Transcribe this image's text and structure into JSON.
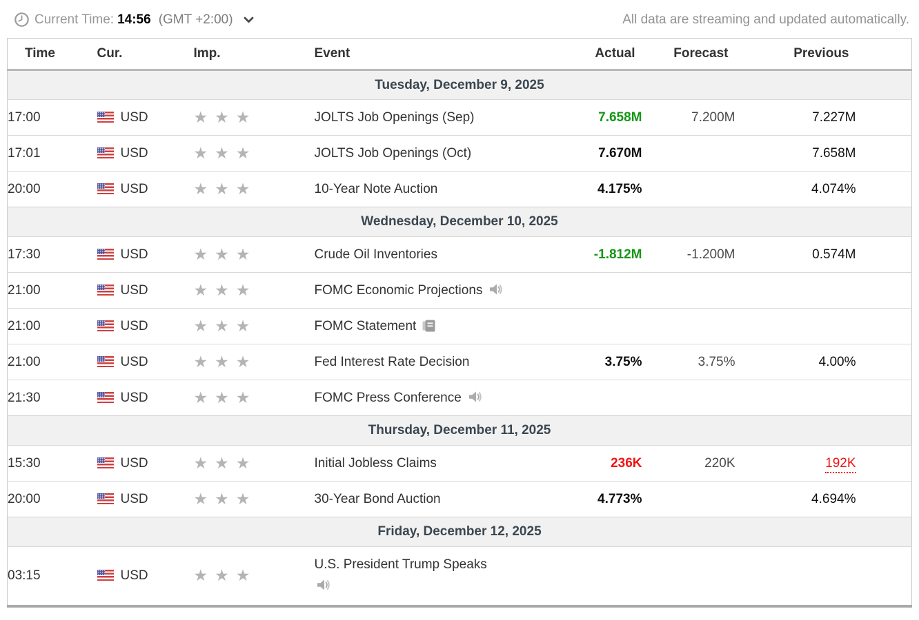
{
  "topbar": {
    "current_time_label": "Current Time:",
    "current_time_value": "14:56",
    "timezone": "(GMT +2:00)",
    "streaming_note": "All data are streaming and updated automatically."
  },
  "colors": {
    "green": "#149614",
    "red": "#f01414",
    "star_gray": "#b4b4b4",
    "day_header_text": "#3b4650"
  },
  "table": {
    "columns": [
      "Time",
      "Cur.",
      "Imp.",
      "Event",
      "Actual",
      "Forecast",
      "Previous"
    ],
    "days": [
      {
        "date": "Tuesday, December 9, 2025",
        "rows": [
          {
            "time": "17:00",
            "currency": "USD",
            "flag": "us-flag",
            "importance": 3,
            "event": "JOLTS Job Openings (Sep)",
            "actual": "7.658M",
            "actual_color": "green",
            "forecast": "7.200M",
            "previous": "7.227M"
          },
          {
            "time": "17:01",
            "currency": "USD",
            "flag": "us-flag",
            "importance": 3,
            "event": "JOLTS Job Openings (Oct)",
            "actual": "7.670M",
            "forecast": "",
            "previous": "7.658M"
          },
          {
            "time": "20:00",
            "currency": "USD",
            "flag": "us-flag",
            "importance": 3,
            "event": "10-Year Note Auction",
            "actual": "4.175%",
            "forecast": "",
            "previous": "4.074%"
          }
        ]
      },
      {
        "date": "Wednesday, December 10, 2025",
        "rows": [
          {
            "time": "17:30",
            "currency": "USD",
            "flag": "us-flag",
            "importance": 3,
            "event": "Crude Oil Inventories",
            "actual": "-1.812M",
            "actual_color": "green",
            "forecast": "-1.200M",
            "previous": "0.574M"
          },
          {
            "time": "21:00",
            "currency": "USD",
            "flag": "us-flag",
            "importance": 3,
            "event": "FOMC Economic Projections",
            "event_icon": "speaker",
            "actual": "",
            "forecast": "",
            "previous": ""
          },
          {
            "time": "21:00",
            "currency": "USD",
            "flag": "us-flag",
            "importance": 3,
            "event": "FOMC Statement",
            "event_icon": "report",
            "actual": "",
            "forecast": "",
            "previous": ""
          },
          {
            "time": "21:00",
            "currency": "USD",
            "flag": "us-flag",
            "importance": 3,
            "event": "Fed Interest Rate Decision",
            "actual": "3.75%",
            "forecast": "3.75%",
            "previous": "4.00%"
          },
          {
            "time": "21:30",
            "currency": "USD",
            "flag": "us-flag",
            "importance": 3,
            "event": "FOMC Press Conference",
            "event_icon": "speaker",
            "actual": "",
            "forecast": "",
            "previous": ""
          }
        ]
      },
      {
        "date": "Thursday, December 11, 2025",
        "rows": [
          {
            "time": "15:30",
            "currency": "USD",
            "flag": "us-flag",
            "importance": 3,
            "event": "Initial Jobless Claims",
            "actual": "236K",
            "actual_color": "red",
            "forecast": "220K",
            "previous": "192K",
            "previous_color": "red",
            "previous_revised": true
          },
          {
            "time": "20:00",
            "currency": "USD",
            "flag": "us-flag",
            "importance": 3,
            "event": "30-Year Bond Auction",
            "actual": "4.773%",
            "forecast": "",
            "previous": "4.694%"
          }
        ]
      },
      {
        "date": "Friday, December 12, 2025",
        "rows": [
          {
            "time": "03:15",
            "currency": "USD",
            "flag": "us-flag",
            "importance": 3,
            "event": "U.S. President Trump Speaks",
            "event_icon": "speaker",
            "icon_below": true,
            "actual": "",
            "forecast": "",
            "previous": ""
          }
        ]
      }
    ]
  }
}
